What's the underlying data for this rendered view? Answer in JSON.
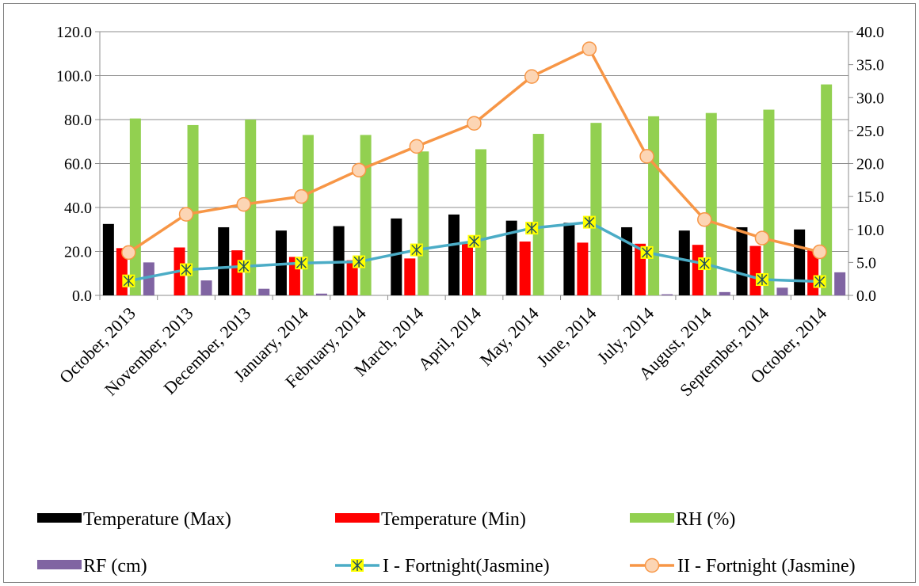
{
  "chart_data": {
    "type": "bar",
    "categories": [
      "October, 2013",
      "November, 2013",
      "December, 2013",
      "January, 2014",
      "February, 2014",
      "March, 2014",
      "April,  2014",
      "May, 2014",
      "June, 2014",
      "July, 2014",
      "August, 2014",
      "September, 2014",
      "October, 2014"
    ],
    "left_axis": {
      "ylim": [
        0,
        120
      ],
      "ticks": [
        "0.0",
        "20.0",
        "40.0",
        "60.0",
        "80.0",
        "100.0",
        "120.0"
      ]
    },
    "right_axis": {
      "ylim": [
        0,
        40
      ],
      "ticks": [
        "0.0",
        "5.0",
        "10.0",
        "15.0",
        "20.0",
        "25.0",
        "30.0",
        "35.0",
        "40.0"
      ]
    },
    "grid": "horizontal",
    "legend_position": "bottom",
    "series": [
      {
        "name": "Temperature (Max)",
        "type": "bar",
        "axis": "left",
        "color": "#000000",
        "values": [
          32.5,
          null,
          31.0,
          29.5,
          31.5,
          35.0,
          36.8,
          34.0,
          33.0,
          31.0,
          29.5,
          31.0,
          30.0
        ]
      },
      {
        "name": "Temperature (Min)",
        "type": "bar",
        "axis": "left",
        "color": "#ff0000",
        "values": [
          21.5,
          21.8,
          20.5,
          17.5,
          16.0,
          16.8,
          23.5,
          24.5,
          24.0,
          23.5,
          23.0,
          22.5,
          21.0
        ]
      },
      {
        "name": "RH (%)",
        "type": "bar",
        "axis": "left",
        "color": "#92d050",
        "values": [
          80.5,
          77.5,
          80.0,
          73.0,
          73.0,
          65.5,
          66.5,
          73.5,
          78.5,
          81.5,
          83.0,
          84.5,
          96.0
        ]
      },
      {
        "name": "RF (cm)",
        "type": "bar",
        "axis": "left",
        "color": "#8064a2",
        "values": [
          15.0,
          6.8,
          3.0,
          0.8,
          0.0,
          0.0,
          0.0,
          0.0,
          0.0,
          0.5,
          1.5,
          3.5,
          10.5
        ]
      },
      {
        "name": "I - Fortnight(Jasmine)",
        "type": "line",
        "axis": "right",
        "color": "#4bacc6",
        "marker": "star-square",
        "marker_color": "#ffff00",
        "values": [
          2.2,
          3.9,
          4.4,
          4.9,
          5.1,
          6.9,
          8.2,
          10.2,
          11.1,
          6.5,
          4.8,
          2.4,
          2.1
        ]
      },
      {
        "name": "II - Fortnight (Jasmine)",
        "type": "line",
        "axis": "right",
        "color": "#f79646",
        "marker": "circle",
        "marker_color": "#fcd5b4",
        "values": [
          6.5,
          12.3,
          13.8,
          15.0,
          19.0,
          22.6,
          26.1,
          33.2,
          37.4,
          21.1,
          11.5,
          8.7,
          6.6
        ]
      }
    ]
  }
}
